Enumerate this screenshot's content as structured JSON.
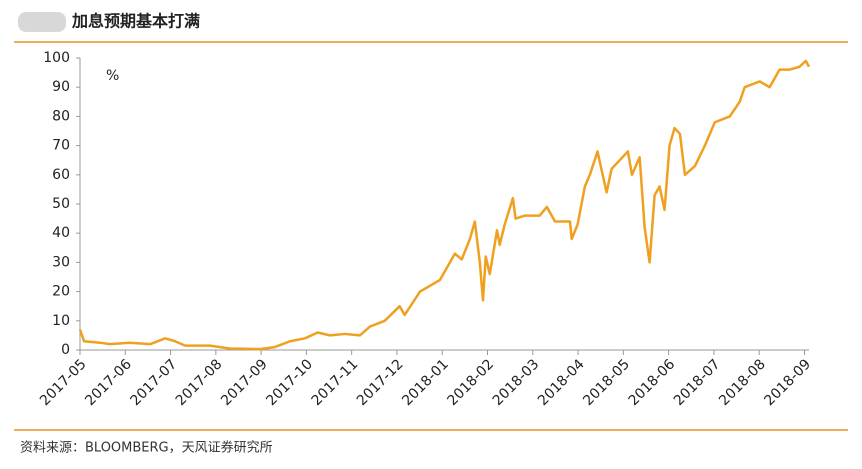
{
  "chart_data": {
    "type": "line",
    "title": "加息预期基本打满",
    "unit_label": "%",
    "source": "资料来源：BLOOMBERG，天风证券研究所",
    "x": [
      0,
      0.09,
      0.44,
      0.66,
      1.1,
      1.55,
      1.88,
      2.1,
      2.32,
      2.87,
      3.31,
      3.97,
      4.3,
      4.64,
      4.97,
      5.25,
      5.52,
      5.85,
      6.18,
      6.4,
      6.73,
      7.06,
      7.17,
      7.51,
      7.95,
      8.28,
      8.43,
      8.61,
      8.72,
      8.83,
      8.9,
      8.96,
      9.05,
      9.21,
      9.27,
      9.38,
      9.56,
      9.62,
      9.82,
      10.15,
      10.31,
      10.49,
      10.82,
      10.86,
      10.99,
      11.15,
      11.26,
      11.43,
      11.5,
      11.63,
      11.74,
      11.92,
      12.1,
      12.19,
      12.36,
      12.47,
      12.58,
      12.69,
      12.8,
      12.91,
      13.02,
      13.13,
      13.25,
      13.36,
      13.58,
      13.8,
      14.02,
      14.35,
      14.57,
      14.68,
      15.01,
      15.23,
      15.45,
      15.67,
      15.89,
      16.03,
      16.1
    ],
    "series": [
      {
        "name": "加息预期",
        "color": "#f0a020",
        "values": [
          7,
          3,
          2.5,
          2,
          2.5,
          2,
          4,
          3,
          1.5,
          1.5,
          0.5,
          0.3,
          1,
          3,
          4,
          6,
          5,
          5.5,
          5,
          8,
          10,
          15,
          12,
          20,
          24,
          33,
          31,
          38,
          44,
          30,
          17,
          32,
          26,
          41,
          36,
          43,
          52,
          45,
          46,
          46,
          49,
          44,
          44,
          38,
          43,
          56,
          60,
          68,
          63,
          54,
          62,
          65,
          68,
          60,
          66,
          42,
          30,
          53,
          56,
          48,
          70,
          76,
          74,
          60,
          63,
          70,
          78,
          80,
          85,
          90,
          92,
          90,
          96,
          96,
          97,
          99,
          97
        ]
      }
    ],
    "xlim": [
      0,
      16.1
    ],
    "xticks": [
      {
        "value": 0,
        "label": "2017-05"
      },
      {
        "value": 1,
        "label": "2017-06"
      },
      {
        "value": 2,
        "label": "2017-07"
      },
      {
        "value": 3,
        "label": "2017-08"
      },
      {
        "value": 4,
        "label": "2017-09"
      },
      {
        "value": 5,
        "label": "2017-10"
      },
      {
        "value": 6,
        "label": "2017-11"
      },
      {
        "value": 7,
        "label": "2017-12"
      },
      {
        "value": 8,
        "label": "2018-01"
      },
      {
        "value": 9,
        "label": "2018-02"
      },
      {
        "value": 10,
        "label": "2018-03"
      },
      {
        "value": 11,
        "label": "2018-04"
      },
      {
        "value": 12,
        "label": "2018-05"
      },
      {
        "value": 13,
        "label": "2018-06"
      },
      {
        "value": 14,
        "label": "2018-07"
      },
      {
        "value": 15,
        "label": "2018-08"
      },
      {
        "value": 16,
        "label": "2018-09"
      }
    ],
    "ylim": [
      0,
      100
    ],
    "yticks": [
      0,
      10,
      20,
      30,
      40,
      50,
      60,
      70,
      80,
      90,
      100
    ],
    "grid": false
  }
}
